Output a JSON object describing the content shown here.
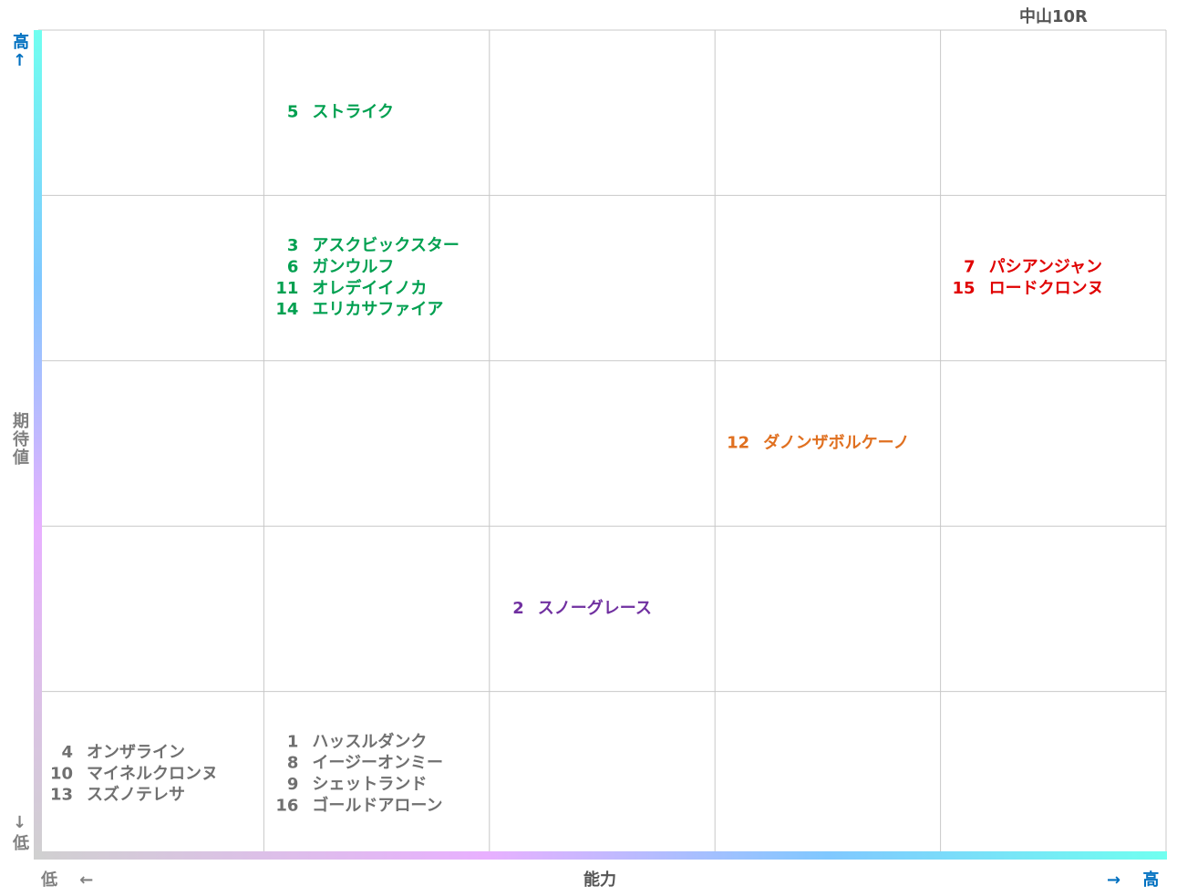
{
  "title": "中山10R",
  "y_axis": {
    "high": "高↑",
    "label": "期待値",
    "low": "↓低"
  },
  "x_axis": {
    "low": "低 ←",
    "label": "能力",
    "high": "→ 高"
  },
  "grid": [
    [
      null,
      {
        "color": "#00a050",
        "entries": [
          {
            "number": "5",
            "name": "ストライク"
          }
        ]
      },
      null,
      null,
      null
    ],
    [
      null,
      {
        "color": "#00a050",
        "entries": [
          {
            "number": "3",
            "name": "アスクビックスター"
          },
          {
            "number": "6",
            "name": "ガンウルフ"
          },
          {
            "number": "11",
            "name": "オレデイイノカ"
          },
          {
            "number": "14",
            "name": "エリカサファイア"
          }
        ]
      },
      null,
      null,
      {
        "color": "#e00000",
        "entries": [
          {
            "number": "7",
            "name": "パシアンジャン"
          },
          {
            "number": "15",
            "name": "ロードクロンヌ"
          }
        ]
      }
    ],
    [
      null,
      null,
      null,
      {
        "color": "#e07020",
        "entries": [
          {
            "number": "12",
            "name": "ダノンザボルケーノ"
          }
        ]
      },
      null
    ],
    [
      null,
      null,
      {
        "color": "#7030a0",
        "entries": [
          {
            "number": "2",
            "name": "スノーグレース"
          }
        ]
      },
      null,
      null
    ],
    [
      {
        "color": "#707070",
        "entries": [
          {
            "number": "4",
            "name": "オンザライン"
          },
          {
            "number": "10",
            "name": "マイネルクロンヌ"
          },
          {
            "number": "13",
            "name": "スズノテレサ"
          }
        ]
      },
      {
        "color": "#707070",
        "entries": [
          {
            "number": "1",
            "name": "ハッスルダンク"
          },
          {
            "number": "8",
            "name": "イージーオンミー"
          },
          {
            "number": "9",
            "name": "シェットランド"
          },
          {
            "number": "16",
            "name": "ゴールドアローン"
          }
        ]
      },
      null,
      null,
      null
    ]
  ]
}
